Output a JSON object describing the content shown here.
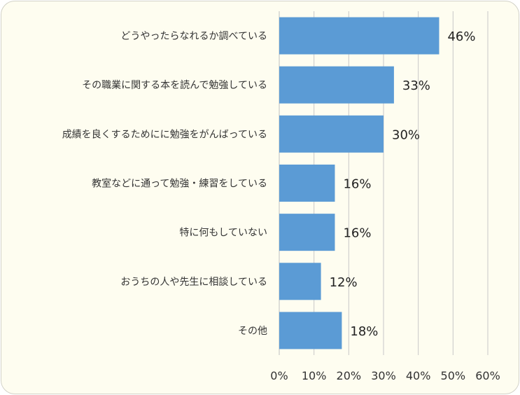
{
  "chart_data": {
    "type": "bar",
    "orientation": "horizontal",
    "categories": [
      "どうやったらなれるか調べている",
      "その職業に関する本を読んで勉強している",
      "成績を良くするためにに勉強をがんばっている",
      "教室などに通って勉強・練習をしている",
      "特に何もしていない",
      "おうちの人や先生に相談している",
      "その他"
    ],
    "values": [
      46,
      33,
      30,
      16,
      16,
      12,
      18
    ],
    "value_labels": [
      "46%",
      "33%",
      "30%",
      "16%",
      "16%",
      "12%",
      "18%"
    ],
    "xlim": [
      0,
      60
    ],
    "xticks": [
      "0%",
      "10%",
      "20%",
      "30%",
      "40%",
      "50%",
      "60%"
    ],
    "grid": "vertical",
    "bar_color": "#5b9bd5",
    "grid_color": "#c8c8c8",
    "background": "#fefdf0"
  }
}
